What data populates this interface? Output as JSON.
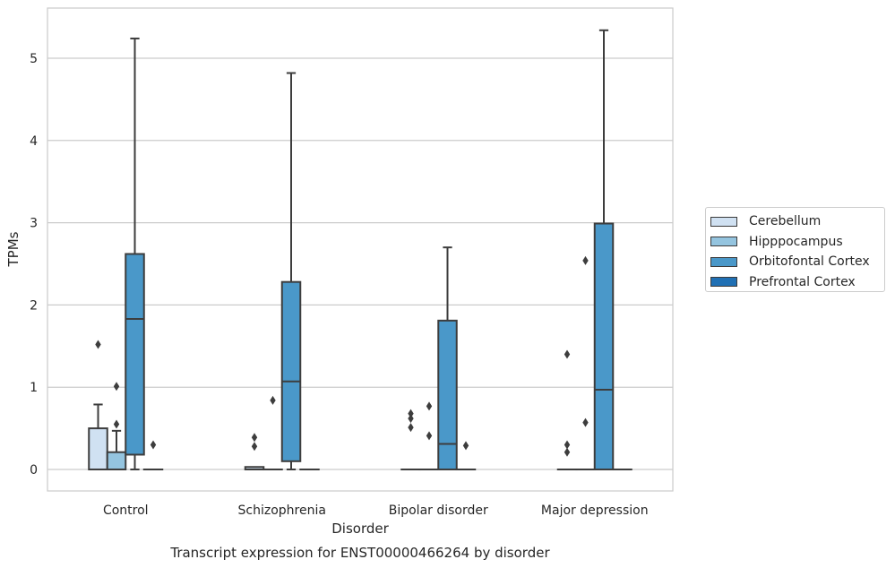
{
  "chart_data": {
    "type": "box",
    "title": "Transcript expression for ENST00000466264 by disorder",
    "xlabel": "Disorder",
    "ylabel": "TPMs",
    "ylim": [
      -0.26,
      5.6
    ],
    "yticks": [
      "0",
      "1",
      "2",
      "3",
      "4",
      "5"
    ],
    "categories": [
      "Control",
      "Schizophrenia",
      "Bipolar disorder",
      "Major depression"
    ],
    "grid": true,
    "legend_position": "right",
    "series": [
      {
        "name": "Cerebellum",
        "color": "#d0e1f2",
        "boxes": [
          {
            "q1": 0,
            "median": 0,
            "q3": 0.5,
            "whisker_low": 0,
            "whisker_high": 0.79,
            "outliers": [
              1.52
            ]
          },
          {
            "q1": 0,
            "median": 0,
            "q3": 0.03,
            "whisker_low": 0,
            "whisker_high": 0.03,
            "outliers": [
              0.39,
              0.28
            ]
          },
          {
            "q1": 0,
            "median": 0,
            "q3": 0,
            "whisker_low": 0,
            "whisker_high": 0,
            "outliers": [
              0.68,
              0.62,
              0.51
            ]
          },
          {
            "q1": 0,
            "median": 0,
            "q3": 0,
            "whisker_low": 0,
            "whisker_high": 0,
            "outliers": [
              1.4,
              0.3,
              0.21
            ]
          }
        ]
      },
      {
        "name": "Hipppocampus",
        "color": "#94c4df",
        "boxes": [
          {
            "q1": 0,
            "median": 0,
            "q3": 0.21,
            "whisker_low": 0,
            "whisker_high": 0.47,
            "outliers": [
              1.01,
              0.55
            ]
          },
          {
            "q1": 0,
            "median": 0,
            "q3": 0,
            "whisker_low": 0,
            "whisker_high": 0,
            "outliers": [
              0.84
            ]
          },
          {
            "q1": 0,
            "median": 0,
            "q3": 0,
            "whisker_low": 0,
            "whisker_high": 0,
            "outliers": [
              0.77,
              0.41
            ]
          },
          {
            "q1": 0,
            "median": 0,
            "q3": 0,
            "whisker_low": 0,
            "whisker_high": 0,
            "outliers": [
              2.54,
              0.57
            ]
          }
        ]
      },
      {
        "name": "Orbitofontal Cortex",
        "color": "#4a98c9",
        "boxes": [
          {
            "q1": 0.18,
            "median": 1.83,
            "q3": 2.62,
            "whisker_low": 0,
            "whisker_high": 5.24,
            "outliers": []
          },
          {
            "q1": 0.1,
            "median": 1.07,
            "q3": 2.28,
            "whisker_low": 0,
            "whisker_high": 4.82,
            "outliers": []
          },
          {
            "q1": 0,
            "median": 0.31,
            "q3": 1.81,
            "whisker_low": 0,
            "whisker_high": 2.7,
            "outliers": []
          },
          {
            "q1": 0,
            "median": 0.97,
            "q3": 2.99,
            "whisker_low": 0,
            "whisker_high": 5.34,
            "outliers": []
          }
        ]
      },
      {
        "name": "Prefrontal Cortex",
        "color": "#2070b4",
        "boxes": [
          {
            "q1": 0,
            "median": 0,
            "q3": 0,
            "whisker_low": 0,
            "whisker_high": 0,
            "outliers": [
              0.3
            ]
          },
          {
            "q1": 0,
            "median": 0,
            "q3": 0,
            "whisker_low": 0,
            "whisker_high": 0,
            "outliers": []
          },
          {
            "q1": 0,
            "median": 0,
            "q3": 0,
            "whisker_low": 0,
            "whisker_high": 0,
            "outliers": [
              0.29
            ]
          },
          {
            "q1": 0,
            "median": 0,
            "q3": 0,
            "whisker_low": 0,
            "whisker_high": 0,
            "outliers": []
          }
        ]
      }
    ]
  }
}
